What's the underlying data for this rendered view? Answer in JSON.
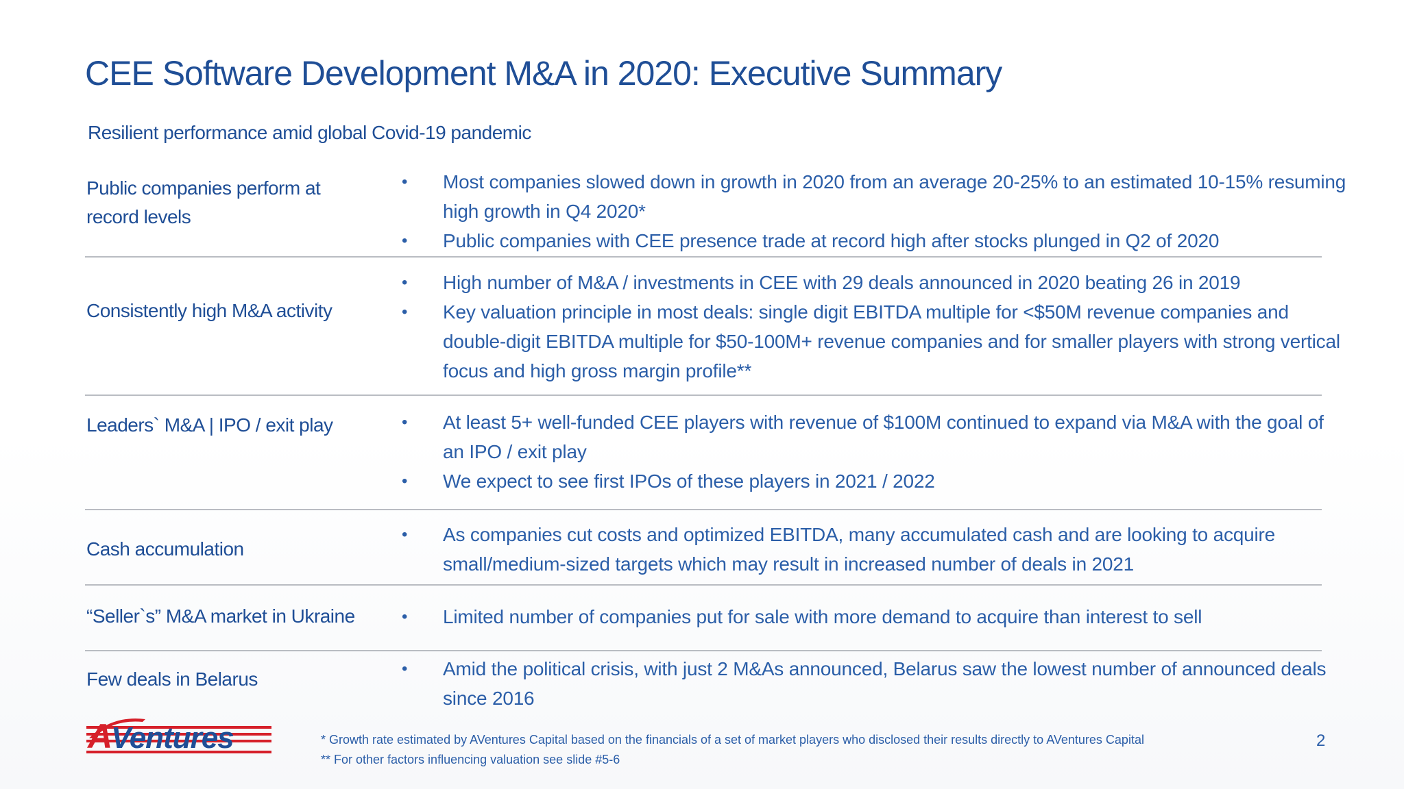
{
  "slide": {
    "title": "CEE Software Development M&A in 2020: Executive Summary",
    "subtitle": "Resilient performance amid global Covid-19 pandemic",
    "page_number": "2"
  },
  "rows": [
    {
      "label": "Public companies perform at record levels",
      "bullets": [
        "Most companies slowed down in growth in 2020 from an average 20-25% to an estimated 10-15% resuming high growth in Q4 2020*",
        "Public companies with CEE presence trade at record high after stocks plunged in Q2 of 2020"
      ]
    },
    {
      "label": "Consistently high M&A activity",
      "bullets": [
        "High number of M&A / investments in CEE with 29 deals announced in 2020 beating 26 in 2019",
        "Key valuation principle in most deals: single digit EBITDA multiple for <$50M revenue companies and double-digit EBITDA multiple for $50-100M+ revenue companies and for smaller players with strong vertical focus and high gross margin profile**"
      ]
    },
    {
      "label": "Leaders` M&A | IPO / exit play",
      "bullets": [
        "At least 5+ well-funded CEE players with revenue of $100M continued to expand via M&A with the goal of an IPO / exit play",
        "We expect to see first IPOs of these players in 2021 / 2022"
      ]
    },
    {
      "label": "Cash accumulation",
      "bullets": [
        "As companies cut costs and optimized EBITDA, many accumulated cash and are looking to acquire small/medium-sized targets which may result in increased number of deals in 2021"
      ]
    },
    {
      "label": "“Seller`s” M&A market in Ukraine",
      "bullets": [
        "Limited number of companies put for sale with more demand to acquire than interest to sell"
      ]
    },
    {
      "label": "Few deals in Belarus",
      "bullets": [
        "Amid the political crisis, with just 2 M&As announced, Belarus saw the lowest number of announced deals since 2016"
      ]
    }
  ],
  "bullet_glyph": "•",
  "footnotes": [
    "* Growth rate estimated by AVentures Capital based on the financials of a set of market players who disclosed their results directly to AVentures Capital",
    "** For other factors influencing valuation see slide #5-6"
  ],
  "logo": {
    "text": "AVentures",
    "icon": "aventures-logo-icon",
    "brand_color": "#d6202a"
  },
  "colors": {
    "title": "#1f4e96",
    "body": "#2b5ea8",
    "divider": "#b9bcc2"
  }
}
